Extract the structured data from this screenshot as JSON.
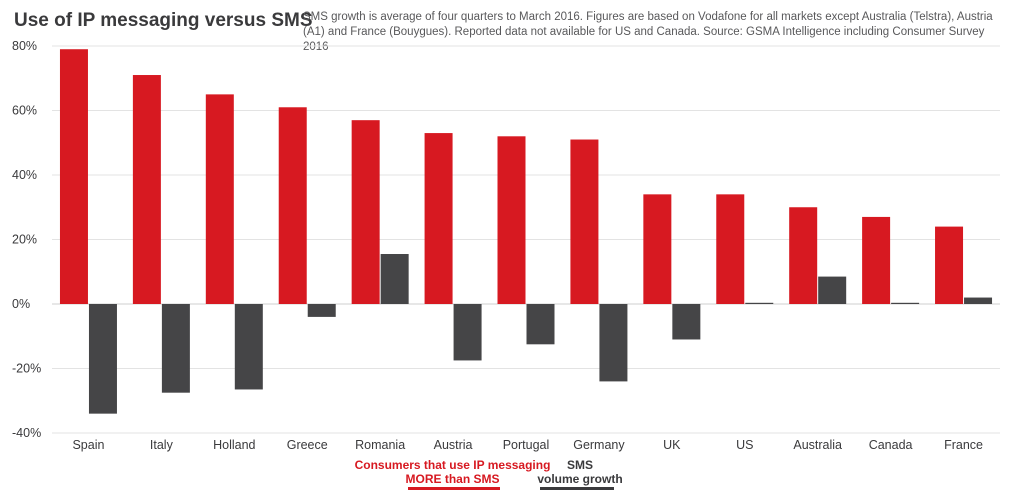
{
  "header": {
    "title": "Use of IP messaging versus SMS",
    "note": "SMS growth is average of four quarters to March 2016. Figures are based on Vodafone for all markets except Australia (Telstra), Austria (A1) and France (Bouygues). Reported data not available for US and Canada. Source: GSMA Intelligence including Consumer Survey 2016"
  },
  "colors": {
    "ip": "#d71921",
    "sms": "#454547",
    "grid": "#e3e3e3"
  },
  "chart_data": {
    "type": "bar",
    "title": "Use of IP messaging versus SMS",
    "xlabel": "",
    "ylabel": "",
    "ylim": [
      -40,
      80
    ],
    "yticks": [
      80,
      60,
      40,
      20,
      0,
      -20,
      -40
    ],
    "ytick_labels": [
      "80%",
      "60%",
      "40%",
      "20%",
      "0%",
      "-20%",
      "-40%"
    ],
    "grid": true,
    "categories": [
      "Spain",
      "Italy",
      "Holland",
      "Greece",
      "Romania",
      "Austria",
      "Portugal",
      "Germany",
      "UK",
      "US",
      "Australia",
      "Canada",
      "France"
    ],
    "series": [
      {
        "name": "Consumers that use IP messaging MORE than SMS",
        "values": [
          79,
          71,
          65,
          61,
          57,
          53,
          52,
          51,
          34,
          34,
          30,
          27,
          24
        ]
      },
      {
        "name": "SMS volume growth",
        "values": [
          -34,
          -27.5,
          -26.5,
          -4,
          15.5,
          -17.5,
          -12.5,
          -24,
          -11,
          0,
          8.5,
          0,
          2
        ]
      }
    ]
  },
  "legend": {
    "ip_line1": "Consumers that use IP messaging",
    "ip_line2": "MORE than SMS",
    "sms_line1": "SMS",
    "sms_line2": "volume growth"
  }
}
